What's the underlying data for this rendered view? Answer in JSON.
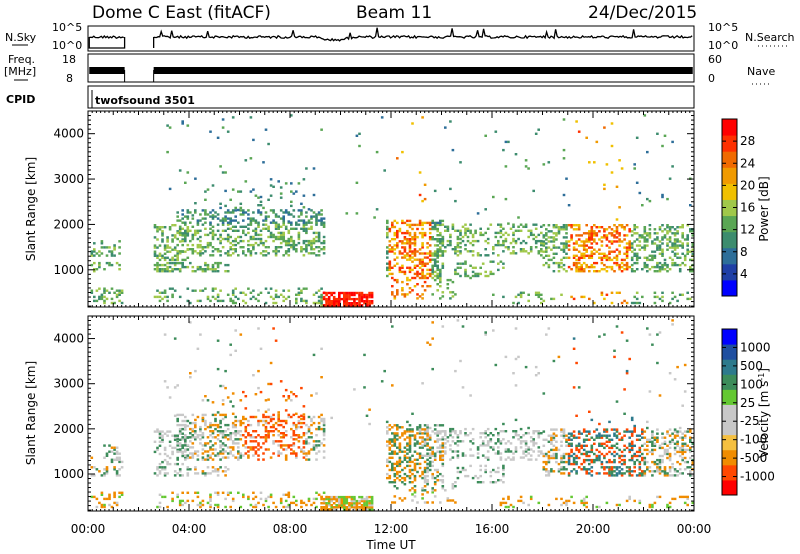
{
  "header": {
    "station": "Dome C East (fitACF)",
    "beam": "Beam 11",
    "date": "24/Dec/2015"
  },
  "panels": {
    "nsky_label": "N.Sky",
    "nsky_ticks": [
      "10^5",
      "10^0"
    ],
    "nsearch_label": "N.Search",
    "nsearch_ticks": [
      "10^5",
      "10^0"
    ],
    "freq_label": "Freq.",
    "freq_unit": "[MHz]",
    "freq_ticks": [
      "18",
      "8"
    ],
    "nave_label": "Nave",
    "nave_ticks": [
      "60",
      "0"
    ],
    "cpid_label": "CPID",
    "cpid_value": "twofsound 3501"
  },
  "colors": {
    "power_scale": [
      "#0000ff",
      "#1f3fa6",
      "#2d6e99",
      "#3c8c6e",
      "#5aa654",
      "#a0c84a",
      "#f0c000",
      "#f09a00",
      "#f06a00",
      "#ff3000",
      "#ff0000"
    ],
    "velocity_scale": [
      "#ff0000",
      "#ff4800",
      "#f08c00",
      "#f5c040",
      "#c8c8c8",
      "#c8c8c8",
      "#64c832",
      "#3c8c5a",
      "#2d7a8c",
      "#1f4fa0",
      "#0000ff"
    ]
  },
  "chart_data": [
    {
      "type": "heatmap",
      "quantity": "Power",
      "ylabel": "Slant Range [km]",
      "ylim": [
        180,
        4500
      ],
      "y_ticks": [
        "1000",
        "2000",
        "3000",
        "4000"
      ],
      "x_ticks": [
        "00:00",
        "04:00",
        "08:00",
        "12:00",
        "16:00",
        "20:00",
        "00:00"
      ],
      "colorbar_label": "Power [dB]",
      "colorbar_ticks": [
        "28",
        "24",
        "20",
        "16",
        "12",
        "8",
        "4"
      ]
    },
    {
      "type": "heatmap",
      "quantity": "Velocity",
      "ylabel": "Slant Range [km]",
      "xlabel": "Time UT",
      "ylim": [
        180,
        4500
      ],
      "y_ticks": [
        "1000",
        "2000",
        "3000",
        "4000"
      ],
      "x_ticks": [
        "00:00",
        "04:00",
        "08:00",
        "12:00",
        "16:00",
        "20:00",
        "00:00"
      ],
      "colorbar_label": "Velocity [m s",
      "colorbar_label_sup": "-1",
      "colorbar_label_end": "]",
      "colorbar_ticks": [
        "1000",
        "500",
        "100",
        "25",
        "-25",
        "-100",
        "-500",
        "-1000"
      ]
    }
  ]
}
